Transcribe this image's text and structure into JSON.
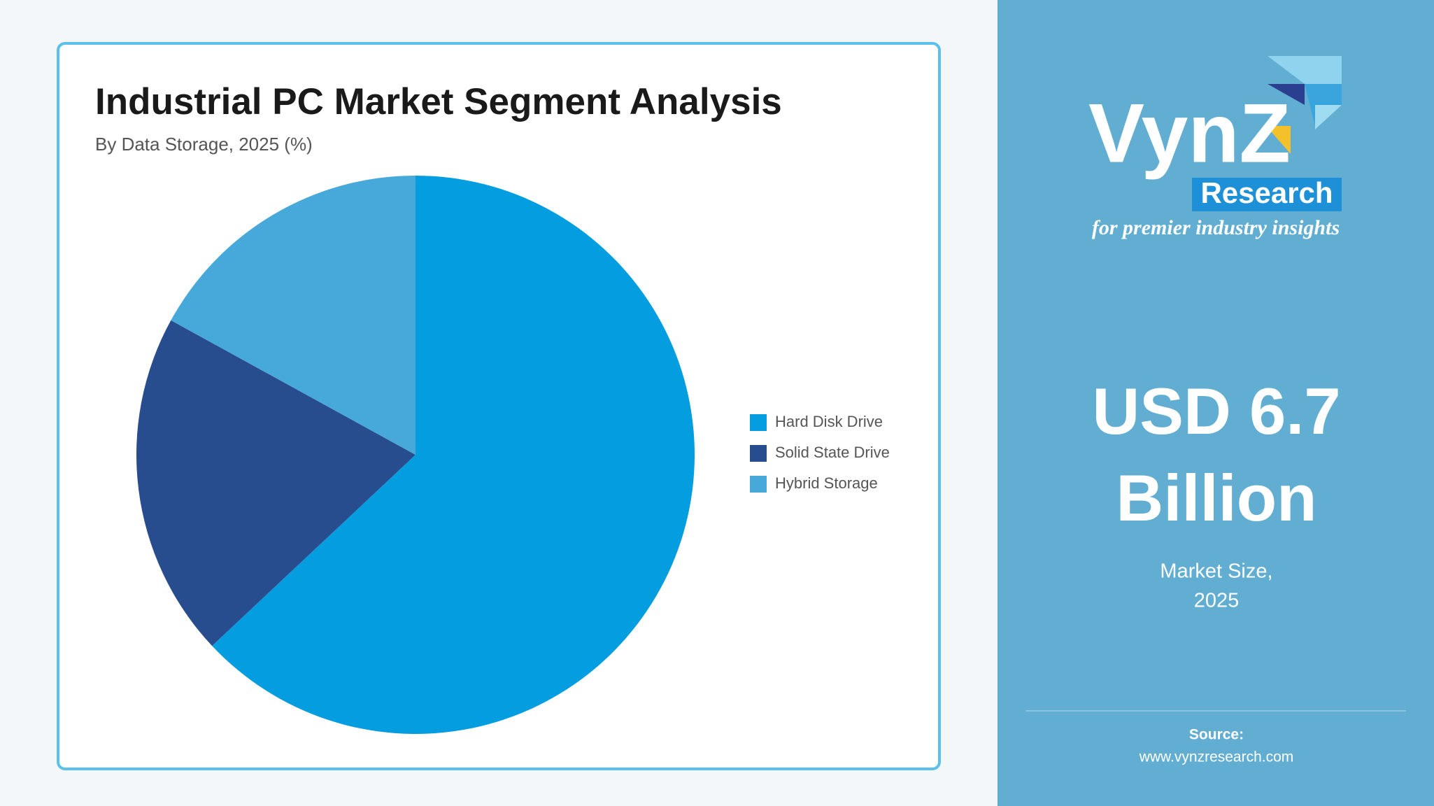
{
  "chart_data": {
    "type": "pie",
    "title": "Industrial PC Market Segment Analysis",
    "subtitle": "By Data Storage, 2025 (%)",
    "categories": [
      "Hard Disk Drive",
      "Solid State Drive",
      "Hybrid Storage"
    ],
    "values": [
      63,
      20,
      17
    ],
    "colors": [
      "#049de0",
      "#284d8f",
      "#47a9da"
    ],
    "legend": "right"
  },
  "panel": {
    "logo": {
      "brand": "VynZ",
      "sub": "Research",
      "tagline": "for premier industry insights"
    },
    "market_value": [
      "USD 6.7",
      "Billion"
    ],
    "market_label": [
      "Market Size,",
      "2025"
    ],
    "source_label": "Source:",
    "source_url": "www.vynzresearch.com"
  }
}
